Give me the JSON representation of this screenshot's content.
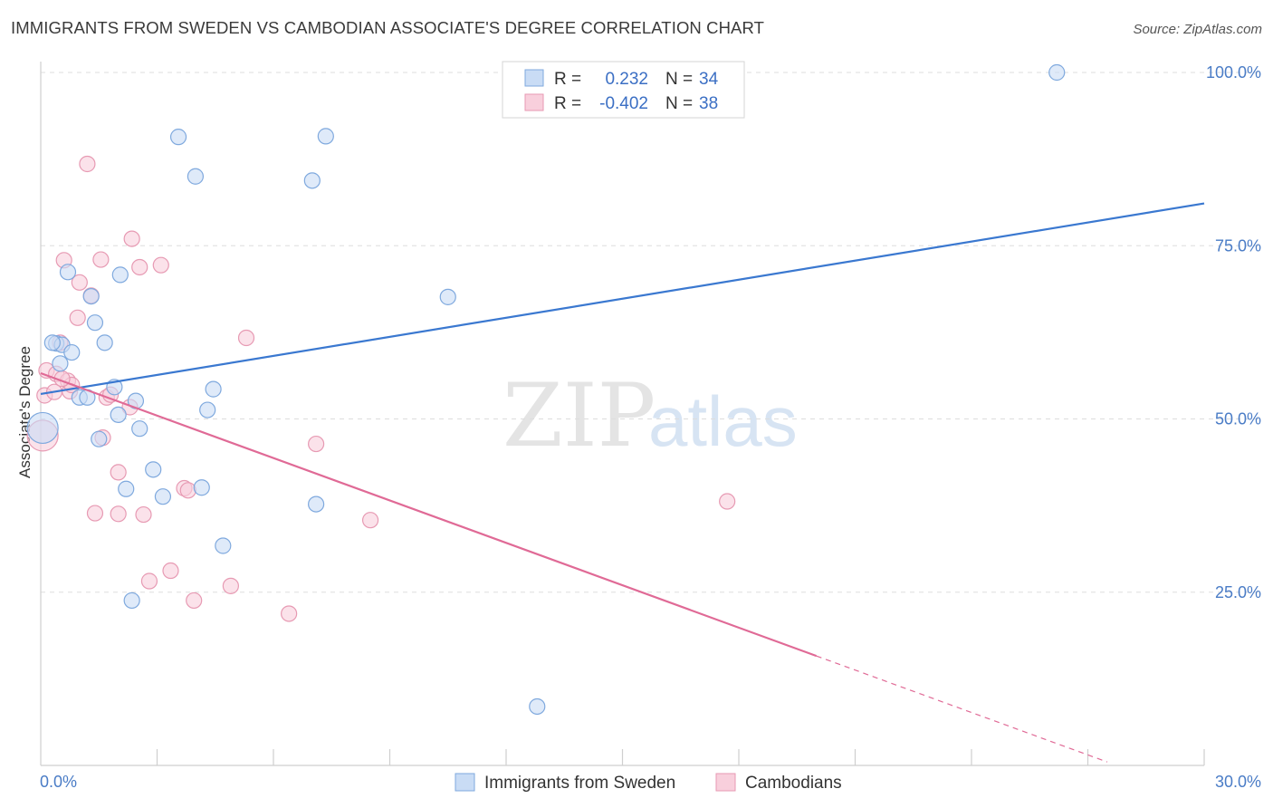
{
  "title": "IMMIGRANTS FROM SWEDEN VS CAMBODIAN ASSOCIATE'S DEGREE CORRELATION CHART",
  "source": "Source: ZipAtlas.com",
  "watermark": {
    "zip": "ZIP",
    "atlas": "atlas"
  },
  "legend": {
    "rows": [
      {
        "r_label": "R =",
        "r_value": "0.232",
        "n_label": "N =",
        "n_value": "34"
      },
      {
        "r_label": "R =",
        "r_value": "-0.402",
        "n_label": "N =",
        "n_value": "38"
      }
    ]
  },
  "bottom_legend": [
    "Immigrants from Sweden",
    "Cambodians"
  ],
  "colors": {
    "blue_fill": "#c9dcf5",
    "blue_stroke": "#7fa9de",
    "blue_line": "#3a78d0",
    "pink_fill": "#f8cfdc",
    "pink_stroke": "#e79ab3",
    "pink_line": "#e06a96",
    "tick_text": "#4a7cc6",
    "grid": "#dddddd"
  },
  "chart_data": {
    "type": "scatter",
    "title": "IMMIGRANTS FROM SWEDEN VS CAMBODIAN ASSOCIATE'S DEGREE CORRELATION CHART",
    "xlabel": "",
    "ylabel": "Associate's Degree",
    "xlim": [
      0,
      30
    ],
    "ylim": [
      0,
      105
    ],
    "x_tick_labels": [
      "0.0%",
      "30.0%"
    ],
    "y_ticks": [
      25,
      50,
      75,
      100
    ],
    "y_tick_labels": [
      "25.0%",
      "50.0%",
      "75.0%",
      "100.0%"
    ],
    "grid": true,
    "legend_position": "top-center",
    "series": [
      {
        "name": "Immigrants from Sweden",
        "color": "#7fa9de",
        "points": [
          [
            0.05,
            48.7
          ],
          [
            0.4,
            60.9
          ],
          [
            0.55,
            60.7
          ],
          [
            0.8,
            59.6
          ],
          [
            0.5,
            58.0
          ],
          [
            0.7,
            71.2
          ],
          [
            1.3,
            67.7
          ],
          [
            1.4,
            63.9
          ],
          [
            1.65,
            61.0
          ],
          [
            1.0,
            53.1
          ],
          [
            1.2,
            53.1
          ],
          [
            1.9,
            54.6
          ],
          [
            2.0,
            50.6
          ],
          [
            2.45,
            52.6
          ],
          [
            1.5,
            47.1
          ],
          [
            2.55,
            48.6
          ],
          [
            2.05,
            70.8
          ],
          [
            2.2,
            39.9
          ],
          [
            2.9,
            42.7
          ],
          [
            3.15,
            38.8
          ],
          [
            3.55,
            90.7
          ],
          [
            3.99,
            85.0
          ],
          [
            4.15,
            40.1
          ],
          [
            4.3,
            51.3
          ],
          [
            4.45,
            54.3
          ],
          [
            4.7,
            31.7
          ],
          [
            2.35,
            23.8
          ],
          [
            7.0,
            84.4
          ],
          [
            7.1,
            37.7
          ],
          [
            7.35,
            90.8
          ],
          [
            10.5,
            67.6
          ],
          [
            12.8,
            8.5
          ],
          [
            26.2,
            100.0
          ],
          [
            0.3,
            61.0
          ]
        ]
      },
      {
        "name": "Cambodians",
        "color": "#e79ab3",
        "points": [
          [
            0.05,
            47.6
          ],
          [
            0.1,
            53.4
          ],
          [
            0.15,
            57.0
          ],
          [
            0.35,
            53.9
          ],
          [
            0.4,
            56.5
          ],
          [
            0.5,
            61.0
          ],
          [
            0.6,
            72.9
          ],
          [
            0.7,
            55.5
          ],
          [
            0.75,
            54.0
          ],
          [
            0.8,
            54.9
          ],
          [
            0.95,
            64.6
          ],
          [
            1.0,
            69.7
          ],
          [
            1.2,
            86.8
          ],
          [
            1.3,
            67.8
          ],
          [
            1.4,
            36.4
          ],
          [
            1.55,
            73.0
          ],
          [
            1.6,
            47.3
          ],
          [
            1.7,
            53.1
          ],
          [
            1.8,
            53.5
          ],
          [
            2.0,
            42.3
          ],
          [
            2.0,
            36.3
          ],
          [
            2.3,
            51.7
          ],
          [
            2.35,
            76.0
          ],
          [
            2.55,
            71.9
          ],
          [
            2.65,
            36.2
          ],
          [
            2.8,
            26.6
          ],
          [
            3.1,
            72.2
          ],
          [
            3.35,
            28.1
          ],
          [
            3.7,
            40.0
          ],
          [
            3.8,
            39.7
          ],
          [
            3.95,
            23.8
          ],
          [
            4.9,
            25.9
          ],
          [
            5.3,
            61.7
          ],
          [
            6.4,
            21.9
          ],
          [
            7.1,
            46.4
          ],
          [
            8.5,
            35.4
          ],
          [
            17.7,
            38.1
          ],
          [
            0.55,
            55.8
          ]
        ]
      }
    ],
    "trend_lines": [
      {
        "series": "Immigrants from Sweden",
        "x": [
          0,
          30
        ],
        "y": [
          53.6,
          81.1
        ],
        "style": "solid"
      },
      {
        "series": "Cambodians",
        "x": [
          0,
          20
        ],
        "y": [
          56.6,
          15.8
        ],
        "style": "solid"
      },
      {
        "series": "Cambodians",
        "x": [
          20,
          27.5
        ],
        "y": [
          15.8,
          0.5
        ],
        "style": "dashed"
      }
    ]
  }
}
